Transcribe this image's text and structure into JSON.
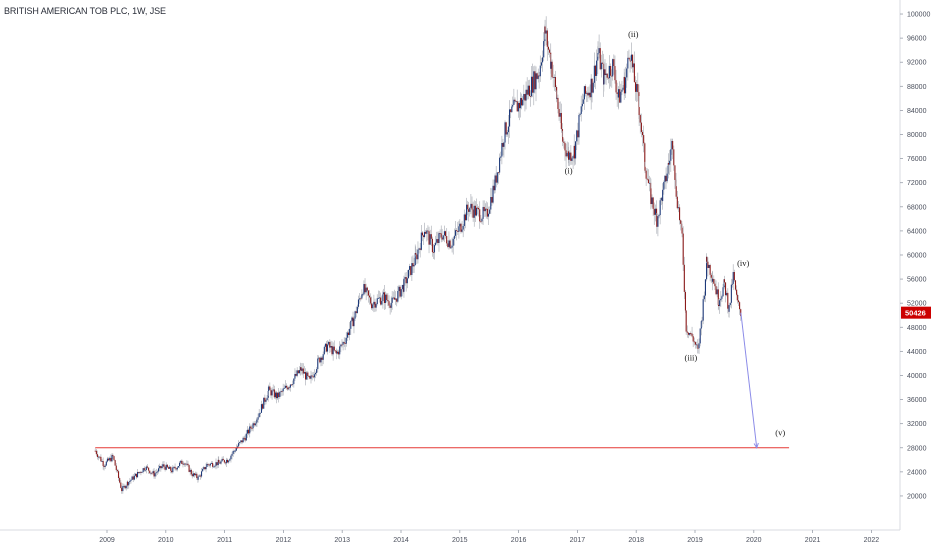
{
  "chart_data": {
    "type": "candlestick",
    "title": "BRITISH AMERICAN TOB PLC, 1W, JSE",
    "x_ticks": [
      "2009",
      "2010",
      "2011",
      "2012",
      "2013",
      "2014",
      "2015",
      "2016",
      "2017",
      "2018",
      "2019",
      "2020",
      "2021",
      "2022"
    ],
    "y_ticks": [
      20000,
      24000,
      28000,
      32000,
      36000,
      40000,
      44000,
      48000,
      52000,
      56000,
      60000,
      64000,
      68000,
      72000,
      76000,
      80000,
      84000,
      88000,
      92000,
      96000,
      100000
    ],
    "ylim": [
      18000,
      101000
    ],
    "xlim": [
      2008.0,
      2022.6
    ],
    "last_price": {
      "label": "50426",
      "value": 50426,
      "color": "#cc0000"
    },
    "price_path": [
      [
        2008.8,
        27500
      ],
      [
        2008.95,
        25200
      ],
      [
        2009.1,
        26500
      ],
      [
        2009.25,
        21000
      ],
      [
        2009.35,
        22200
      ],
      [
        2009.5,
        23500
      ],
      [
        2009.65,
        24800
      ],
      [
        2009.8,
        23600
      ],
      [
        2009.95,
        25000
      ],
      [
        2010.1,
        24200
      ],
      [
        2010.3,
        25800
      ],
      [
        2010.45,
        23600
      ],
      [
        2010.55,
        23000
      ],
      [
        2010.7,
        25200
      ],
      [
        2010.9,
        25500
      ],
      [
        2011.05,
        26000
      ],
      [
        2011.2,
        28000
      ],
      [
        2011.35,
        29800
      ],
      [
        2011.55,
        33000
      ],
      [
        2011.75,
        37500
      ],
      [
        2011.9,
        36500
      ],
      [
        2012.1,
        38500
      ],
      [
        2012.3,
        41000
      ],
      [
        2012.45,
        39000
      ],
      [
        2012.6,
        42500
      ],
      [
        2012.75,
        45000
      ],
      [
        2012.9,
        43500
      ],
      [
        2013.05,
        46000
      ],
      [
        2013.2,
        49500
      ],
      [
        2013.35,
        54500
      ],
      [
        2013.5,
        52000
      ],
      [
        2013.7,
        53000
      ],
      [
        2013.85,
        52000
      ],
      [
        2014.05,
        55000
      ],
      [
        2014.25,
        59500
      ],
      [
        2014.4,
        64500
      ],
      [
        2014.55,
        61000
      ],
      [
        2014.7,
        63500
      ],
      [
        2014.85,
        62000
      ],
      [
        2015.0,
        64500
      ],
      [
        2015.15,
        68000
      ],
      [
        2015.3,
        67000
      ],
      [
        2015.45,
        66500
      ],
      [
        2015.6,
        72000
      ],
      [
        2015.75,
        80000
      ],
      [
        2015.9,
        84000
      ],
      [
        2016.05,
        85500
      ],
      [
        2016.2,
        88000
      ],
      [
        2016.35,
        90500
      ],
      [
        2016.45,
        97000
      ],
      [
        2016.55,
        92000
      ],
      [
        2016.65,
        86000
      ],
      [
        2016.75,
        79000
      ],
      [
        2016.85,
        76500
      ],
      [
        2016.95,
        77500
      ],
      [
        2017.1,
        86000
      ],
      [
        2017.25,
        88500
      ],
      [
        2017.35,
        93500
      ],
      [
        2017.45,
        89500
      ],
      [
        2017.6,
        91500
      ],
      [
        2017.7,
        86000
      ],
      [
        2017.8,
        88500
      ],
      [
        2017.9,
        94000
      ],
      [
        2017.95,
        90000
      ],
      [
        2018.05,
        84500
      ],
      [
        2018.15,
        75000
      ],
      [
        2018.25,
        69500
      ],
      [
        2018.35,
        66000
      ],
      [
        2018.45,
        70000
      ],
      [
        2018.55,
        75000
      ],
      [
        2018.62,
        79000
      ],
      [
        2018.68,
        70500
      ],
      [
        2018.78,
        63000
      ],
      [
        2018.85,
        48000
      ],
      [
        2018.95,
        46500
      ],
      [
        2019.05,
        44000
      ],
      [
        2019.12,
        50000
      ],
      [
        2019.2,
        59000
      ],
      [
        2019.3,
        56500
      ],
      [
        2019.4,
        52500
      ],
      [
        2019.5,
        55000
      ],
      [
        2019.58,
        51000
      ],
      [
        2019.65,
        56500
      ],
      [
        2019.72,
        52000
      ],
      [
        2019.78,
        50426
      ]
    ],
    "support_line": {
      "value": 28000,
      "x_start": 2008.8,
      "x_end": 2020.6,
      "color": "#e53935"
    },
    "projection": {
      "from": [
        2019.78,
        50426
      ],
      "to": [
        2020.05,
        28000
      ],
      "color": "#8c8ce8"
    },
    "annotations": [
      {
        "text": "(i)",
        "x": 2016.85,
        "y": 73500
      },
      {
        "text": "(ii)",
        "x": 2017.95,
        "y": 96200
      },
      {
        "text": "(iii)",
        "x": 2018.93,
        "y": 42500
      },
      {
        "text": "(iv)",
        "x": 2019.82,
        "y": 58200
      },
      {
        "text": "(v)",
        "x": 2020.45,
        "y": 30000
      }
    ],
    "colors": {
      "up": "#1e3a7a",
      "down": "#8b1a1a",
      "wick": "#b0b3bb",
      "axis": "#d9dbe0"
    }
  }
}
